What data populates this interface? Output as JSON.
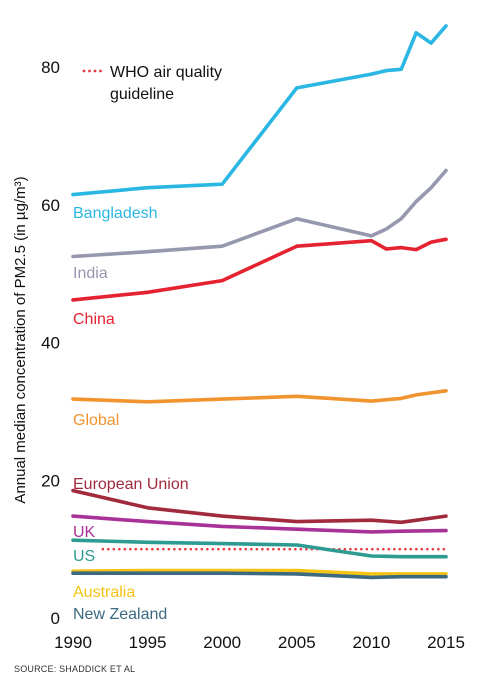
{
  "chart_data": {
    "type": "line",
    "title": "",
    "xlabel": "",
    "ylabel": "Annual median concentration of PM2.5 (in µg/m³)",
    "source": "SOURCE: SHADDICK ET AL",
    "xlim": [
      1990,
      2015
    ],
    "ylim": [
      0,
      87
    ],
    "x_ticks": [
      1990,
      1995,
      2000,
      2005,
      2010,
      2015
    ],
    "y_ticks": [
      0,
      20,
      40,
      60,
      80
    ],
    "grid": false,
    "legend": {
      "position": "top-left",
      "entries": [
        {
          "label_line1": "WHO air quality",
          "label_line2": "guideline",
          "style": "dotted",
          "color": "#e8383d"
        }
      ]
    },
    "series": [
      {
        "name": "Bangladesh",
        "color": "#2bb7e3",
        "points": [
          [
            1990,
            61.5
          ],
          [
            1995,
            62.5
          ],
          [
            2000,
            63.0
          ],
          [
            2005,
            77.0
          ],
          [
            2010,
            79.0
          ],
          [
            2011,
            79.5
          ],
          [
            2012,
            79.7
          ],
          [
            2013,
            85.0
          ],
          [
            2014,
            83.5
          ],
          [
            2015,
            86.0
          ]
        ]
      },
      {
        "name": "India",
        "color": "#9698ad",
        "points": [
          [
            1990,
            52.5
          ],
          [
            1995,
            53.2
          ],
          [
            2000,
            54.0
          ],
          [
            2005,
            58.0
          ],
          [
            2010,
            55.5
          ],
          [
            2011,
            56.5
          ],
          [
            2012,
            58.0
          ],
          [
            2013,
            60.5
          ],
          [
            2014,
            62.5
          ],
          [
            2015,
            65.0
          ]
        ]
      },
      {
        "name": "China",
        "color": "#e52330",
        "points": [
          [
            1990,
            46.2
          ],
          [
            1995,
            47.3
          ],
          [
            2000,
            49.0
          ],
          [
            2005,
            54.0
          ],
          [
            2010,
            54.8
          ],
          [
            2011,
            53.6
          ],
          [
            2012,
            53.8
          ],
          [
            2013,
            53.5
          ],
          [
            2014,
            54.6
          ],
          [
            2015,
            55.0
          ]
        ]
      },
      {
        "name": "Global",
        "color": "#f1932e",
        "points": [
          [
            1990,
            31.8
          ],
          [
            1995,
            31.4
          ],
          [
            2000,
            31.8
          ],
          [
            2005,
            32.2
          ],
          [
            2010,
            31.5
          ],
          [
            2012,
            31.9
          ],
          [
            2013,
            32.4
          ],
          [
            2015,
            33.0
          ]
        ]
      },
      {
        "name": "European Union",
        "color": "#a12a3d",
        "points": [
          [
            1990,
            18.5
          ],
          [
            1995,
            16.0
          ],
          [
            2000,
            14.8
          ],
          [
            2005,
            14.0
          ],
          [
            2010,
            14.2
          ],
          [
            2012,
            13.9
          ],
          [
            2015,
            14.8
          ]
        ]
      },
      {
        "name": "UK",
        "color": "#a83297",
        "points": [
          [
            1990,
            14.8
          ],
          [
            1995,
            14.0
          ],
          [
            2000,
            13.3
          ],
          [
            2005,
            12.9
          ],
          [
            2010,
            12.5
          ],
          [
            2012,
            12.6
          ],
          [
            2015,
            12.7
          ]
        ]
      },
      {
        "name": "US",
        "color": "#2e9b92",
        "points": [
          [
            1990,
            11.3
          ],
          [
            1995,
            11.0
          ],
          [
            2000,
            10.8
          ],
          [
            2005,
            10.6
          ],
          [
            2010,
            9.0
          ],
          [
            2012,
            8.9
          ],
          [
            2015,
            8.9
          ]
        ]
      },
      {
        "name": "Australia",
        "color": "#f5c315",
        "points": [
          [
            1990,
            6.8
          ],
          [
            1995,
            6.9
          ],
          [
            2000,
            6.9
          ],
          [
            2005,
            6.9
          ],
          [
            2010,
            6.4
          ],
          [
            2012,
            6.4
          ],
          [
            2015,
            6.4
          ]
        ]
      },
      {
        "name": "New Zealand",
        "color": "#3b6a80",
        "points": [
          [
            1990,
            6.5
          ],
          [
            1995,
            6.5
          ],
          [
            2000,
            6.5
          ],
          [
            2005,
            6.4
          ],
          [
            2010,
            5.9
          ],
          [
            2012,
            6.0
          ],
          [
            2015,
            6.0
          ]
        ]
      }
    ],
    "reference_line": {
      "name": "WHO air quality guideline",
      "value": 10,
      "x_range": [
        1992,
        2015
      ],
      "color": "#e8383d",
      "style": "dotted"
    }
  }
}
